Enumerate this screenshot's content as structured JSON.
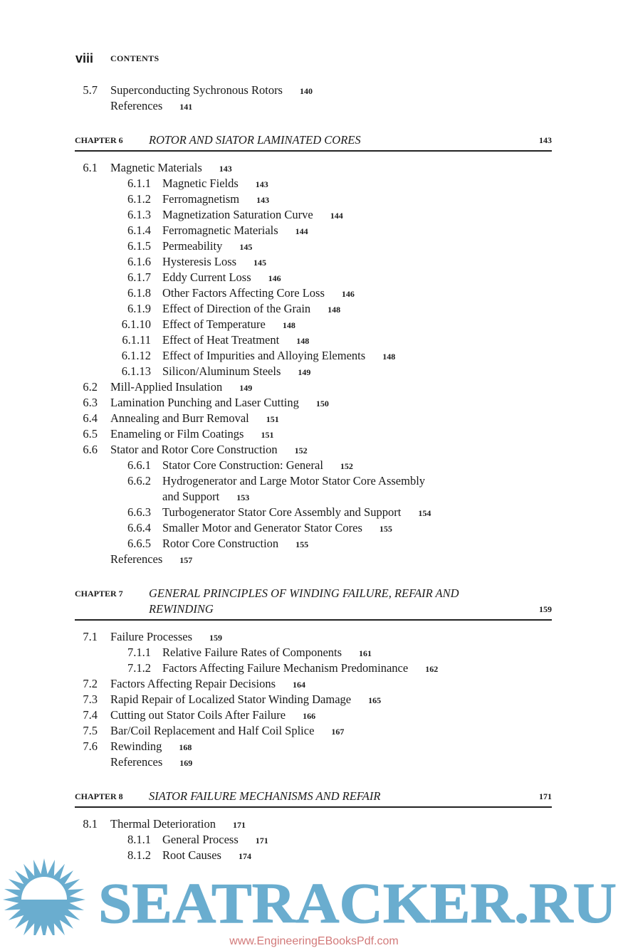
{
  "header": {
    "folio": "viii",
    "running_title": "CONTENTS"
  },
  "toc": [
    {
      "type": "entries",
      "entries": [
        {
          "level": 1,
          "num": "5.7",
          "title": "Superconducting Sychronous Rotors",
          "page": "140"
        },
        {
          "level": 1,
          "num": "",
          "title": "References",
          "page": "141"
        }
      ]
    },
    {
      "type": "chapter",
      "label": "CHAPTER 6",
      "lines": [
        "ROTOR AND SIATOR LAMINATED CORES"
      ],
      "page": "143"
    },
    {
      "type": "entries",
      "entries": [
        {
          "level": 1,
          "num": "6.1",
          "title": "Magnetic Materials",
          "page": "143"
        },
        {
          "level": 2,
          "num": "6.1.1",
          "title": "Magnetic Fields",
          "page": "143"
        },
        {
          "level": 2,
          "num": "6.1.2",
          "title": "Ferromagnetism",
          "page": "143"
        },
        {
          "level": 2,
          "num": "6.1.3",
          "title": "Magnetization Saturation Curve",
          "page": "144"
        },
        {
          "level": 2,
          "num": "6.1.4",
          "title": "Ferromagnetic Materials",
          "page": "144"
        },
        {
          "level": 2,
          "num": "6.1.5",
          "title": "Permeability",
          "page": "145"
        },
        {
          "level": 2,
          "num": "6.1.6",
          "title": "Hysteresis Loss",
          "page": "145"
        },
        {
          "level": 2,
          "num": "6.1.7",
          "title": "Eddy Current Loss",
          "page": "146"
        },
        {
          "level": 2,
          "num": "6.1.8",
          "title": "Other Factors Affecting Core Loss",
          "page": "146"
        },
        {
          "level": 2,
          "num": "6.1.9",
          "title": "Effect of Direction of the Grain",
          "page": "148"
        },
        {
          "level": 2,
          "num": "6.1.10",
          "title": "Effect of Temperature",
          "page": "148"
        },
        {
          "level": 2,
          "num": "6.1.11",
          "title": "Effect of Heat Treatment",
          "page": "148"
        },
        {
          "level": 2,
          "num": "6.1.12",
          "title": "Effect of Impurities and Alloying Elements",
          "page": "148"
        },
        {
          "level": 2,
          "num": "6.1.13",
          "title": "Silicon/Aluminum Steels",
          "page": "149"
        },
        {
          "level": 1,
          "num": "6.2",
          "title": "Mill-Applied Insulation",
          "page": "149"
        },
        {
          "level": 1,
          "num": "6.3",
          "title": "Lamination Punching and Laser Cutting",
          "page": "150"
        },
        {
          "level": 1,
          "num": "6.4",
          "title": "Annealing and Burr Removal",
          "page": "151"
        },
        {
          "level": 1,
          "num": "6.5",
          "title": "Enameling or Film Coatings",
          "page": "151"
        },
        {
          "level": 1,
          "num": "6.6",
          "title": "Stator and Rotor Core Construction",
          "page": "152"
        },
        {
          "level": 2,
          "num": "6.6.1",
          "title": "Stator Core Construction: General",
          "page": "152"
        },
        {
          "level": 2,
          "num": "6.6.2",
          "title": "Hydrogenerator and Large Motor Stator Core Assembly",
          "page": ""
        },
        {
          "level": 2,
          "num": "",
          "title": "and Support",
          "page": "153"
        },
        {
          "level": 2,
          "num": "6.6.3",
          "title": "Turbogenerator Stator Core Assembly and Support",
          "page": "154"
        },
        {
          "level": 2,
          "num": "6.6.4",
          "title": "Smaller Motor and Generator Stator Cores",
          "page": "155"
        },
        {
          "level": 2,
          "num": "6.6.5",
          "title": "Rotor Core Construction",
          "page": "155"
        },
        {
          "level": 1,
          "num": "",
          "title": "References",
          "page": "157"
        }
      ]
    },
    {
      "type": "chapter",
      "label": "CHAPTER 7",
      "lines": [
        "GENERAL PRINCIPLES OF WINDING FAILURE, REFAIR AND",
        "REWINDING"
      ],
      "page": "159"
    },
    {
      "type": "entries",
      "entries": [
        {
          "level": 1,
          "num": "7.1",
          "title": "Failure Processes",
          "page": "159"
        },
        {
          "level": 2,
          "num": "7.1.1",
          "title": "Relative Failure Rates of Components",
          "page": "161"
        },
        {
          "level": 2,
          "num": "7.1.2",
          "title": "Factors Affecting Failure Mechanism Predominance",
          "page": "162"
        },
        {
          "level": 1,
          "num": "7.2",
          "title": "Factors Affecting Repair Decisions",
          "page": "164"
        },
        {
          "level": 1,
          "num": "7.3",
          "title": "Rapid Repair of Localized Stator Winding Damage",
          "page": "165"
        },
        {
          "level": 1,
          "num": "7.4",
          "title": "Cutting out Stator Coils After Failure",
          "page": "166"
        },
        {
          "level": 1,
          "num": "7.5",
          "title": "Bar/Coil Replacement and Half Coil Splice",
          "page": "167"
        },
        {
          "level": 1,
          "num": "7.6",
          "title": "Rewinding",
          "page": "168"
        },
        {
          "level": 1,
          "num": "",
          "title": "References",
          "page": "169"
        }
      ]
    },
    {
      "type": "chapter",
      "label": "CHAPTER 8",
      "lines": [
        "SIATOR FAILURE MECHANISMS AND REFAIR"
      ],
      "page": "171"
    },
    {
      "type": "entries",
      "entries": [
        {
          "level": 1,
          "num": "8.1",
          "title": "Thermal Deterioration",
          "page": "171"
        },
        {
          "level": 2,
          "num": "8.1.1",
          "title": "General Process",
          "page": "171"
        },
        {
          "level": 2,
          "num": "8.1.2",
          "title": "Root Causes",
          "page": "174"
        }
      ]
    }
  ],
  "watermark": {
    "logo_text": "SEATRACKER.RU",
    "url": "www.EngineeringEBooksPdf.com",
    "logo_color": "#6aadcf",
    "url_color": "#d27a7a"
  }
}
